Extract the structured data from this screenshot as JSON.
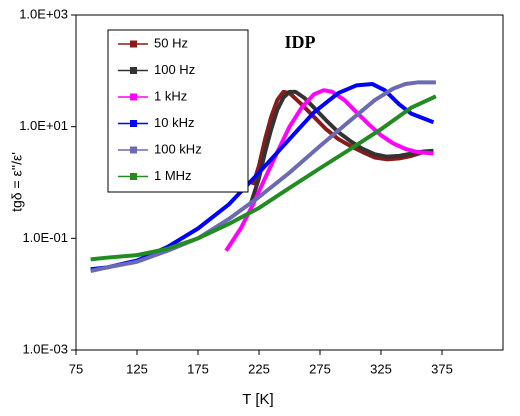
{
  "chart_data": {
    "type": "line",
    "title": "IDP",
    "x_label": "T [K]",
    "y_label": "tgδ = ε''/ε'",
    "log_y": true,
    "grid": false,
    "legend": "upper left",
    "xlim": [
      75,
      425
    ],
    "xticks": [
      75,
      125,
      175,
      225,
      275,
      325,
      375
    ],
    "ylim": [
      0.001,
      1000
    ],
    "yticks": [
      {
        "value": 0.001,
        "label": "1.0E-03"
      },
      {
        "value": 0.1,
        "label": "1.0E-01"
      },
      {
        "value": 10,
        "label": "1.0E+01"
      },
      {
        "value": 1000,
        "label": "1.0E+03"
      }
    ],
    "series": [
      {
        "name": "50 Hz",
        "color": "#8b1a1a",
        "x": [
          220,
          225,
          230,
          235,
          240,
          245,
          250,
          260,
          270,
          280,
          290,
          300,
          310,
          320,
          330,
          340,
          350,
          360,
          368
        ],
        "values": [
          0.9,
          2,
          6,
          15,
          30,
          42,
          40,
          25,
          15,
          9,
          6,
          4.5,
          3.5,
          2.8,
          2.6,
          2.7,
          3,
          3.5,
          3.6
        ]
      },
      {
        "name": "100 Hz",
        "color": "#333333",
        "x": [
          218,
          225,
          230,
          235,
          240,
          245,
          250,
          255,
          262,
          270,
          280,
          290,
          300,
          310,
          320,
          330,
          340,
          350,
          360,
          368
        ],
        "values": [
          0.4,
          1.2,
          3.5,
          9,
          20,
          33,
          42,
          42,
          33,
          22,
          13,
          8,
          5.5,
          4,
          3.2,
          2.9,
          3,
          3.3,
          3.6,
          3.7
        ]
      },
      {
        "name": "1 kHz",
        "color": "#ff00ff",
        "x": [
          198,
          210,
          220,
          230,
          240,
          250,
          260,
          270,
          278,
          285,
          295,
          305,
          315,
          325,
          335,
          345,
          355,
          368
        ],
        "values": [
          0.06,
          0.15,
          0.4,
          1.2,
          3.5,
          10,
          22,
          38,
          45,
          42,
          30,
          18,
          11,
          7,
          5,
          4,
          3.5,
          3.3
        ]
      },
      {
        "name": "10 kHz",
        "color": "#0000ff",
        "x": [
          87,
          100,
          125,
          150,
          175,
          200,
          225,
          250,
          270,
          290,
          305,
          318,
          328,
          340,
          350,
          368
        ],
        "values": [
          0.028,
          0.03,
          0.04,
          0.07,
          0.15,
          0.4,
          1.5,
          6,
          18,
          40,
          55,
          58,
          45,
          25,
          17,
          12
        ]
      },
      {
        "name": "100 kHz",
        "color": "#6b6bb3",
        "x": [
          87,
          100,
          125,
          150,
          175,
          200,
          225,
          250,
          275,
          300,
          320,
          335,
          345,
          355,
          370
        ],
        "values": [
          0.026,
          0.03,
          0.038,
          0.06,
          0.1,
          0.22,
          0.55,
          1.5,
          4.5,
          13,
          30,
          48,
          58,
          62,
          62
        ]
      },
      {
        "name": "1 MHz",
        "color": "#228b22",
        "x": [
          87,
          100,
          125,
          150,
          175,
          200,
          225,
          250,
          275,
          300,
          325,
          350,
          370
        ],
        "values": [
          0.042,
          0.045,
          0.05,
          0.065,
          0.1,
          0.18,
          0.35,
          0.8,
          1.8,
          4,
          9,
          22,
          35
        ]
      }
    ]
  }
}
